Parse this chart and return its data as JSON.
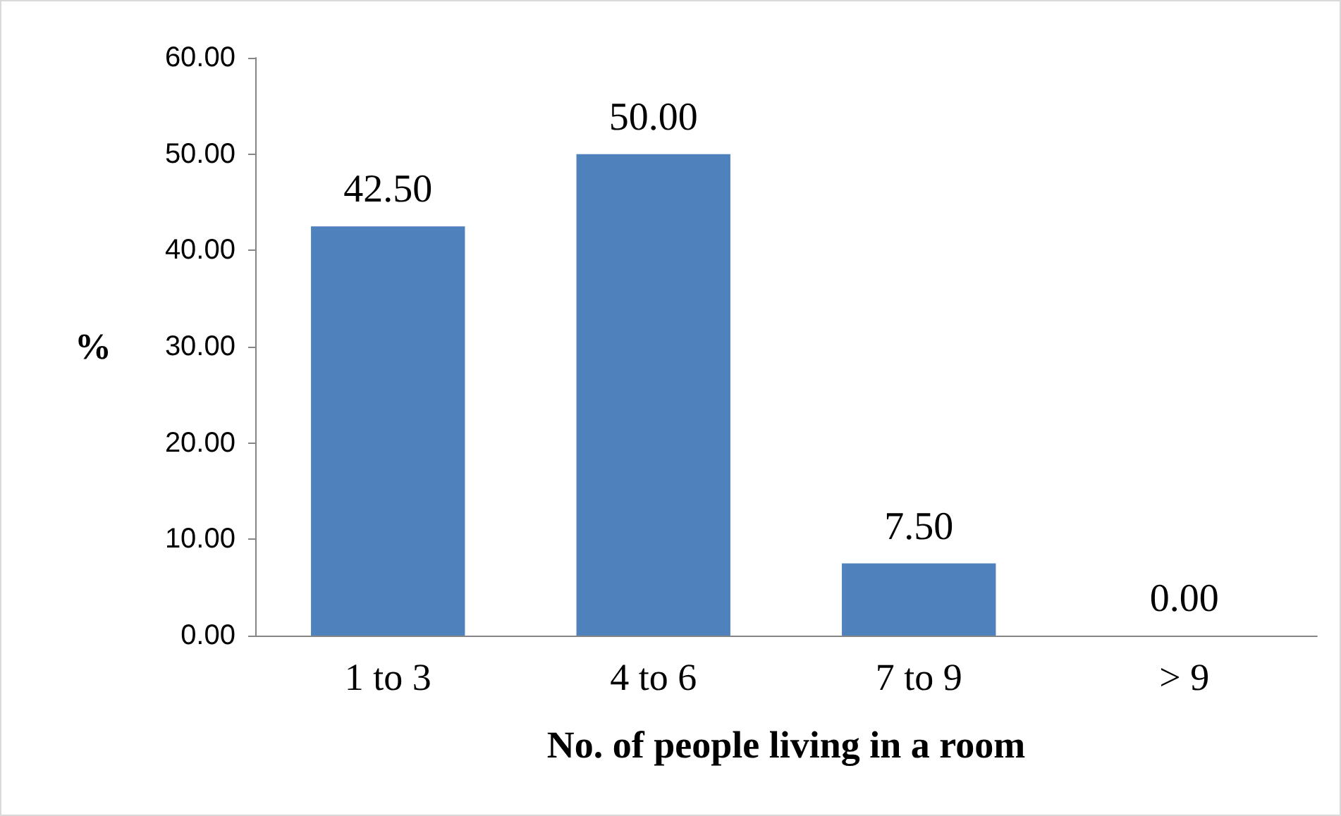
{
  "chart_data": {
    "type": "bar",
    "xlabel": "No. of people living in a room",
    "ylabel": "%",
    "categories": [
      "1 to 3",
      "4 to 6",
      "7 to 9",
      "> 9"
    ],
    "values": [
      42.5,
      50,
      7.5,
      0
    ],
    "value_labels": [
      "42.50",
      "50.00",
      "7.50",
      "0.00"
    ],
    "color": "#4f81bd",
    "ylim": [
      0,
      60
    ],
    "yticks": [
      {
        "value": 0,
        "label": "0.00"
      },
      {
        "value": 10,
        "label": "10.00"
      },
      {
        "value": 20,
        "label": "20.00"
      },
      {
        "value": 30,
        "label": "30.00"
      },
      {
        "value": 40,
        "label": "40.00"
      },
      {
        "value": 50,
        "label": "50.00"
      },
      {
        "value": 60,
        "label": "60.00"
      }
    ],
    "grid": false
  }
}
